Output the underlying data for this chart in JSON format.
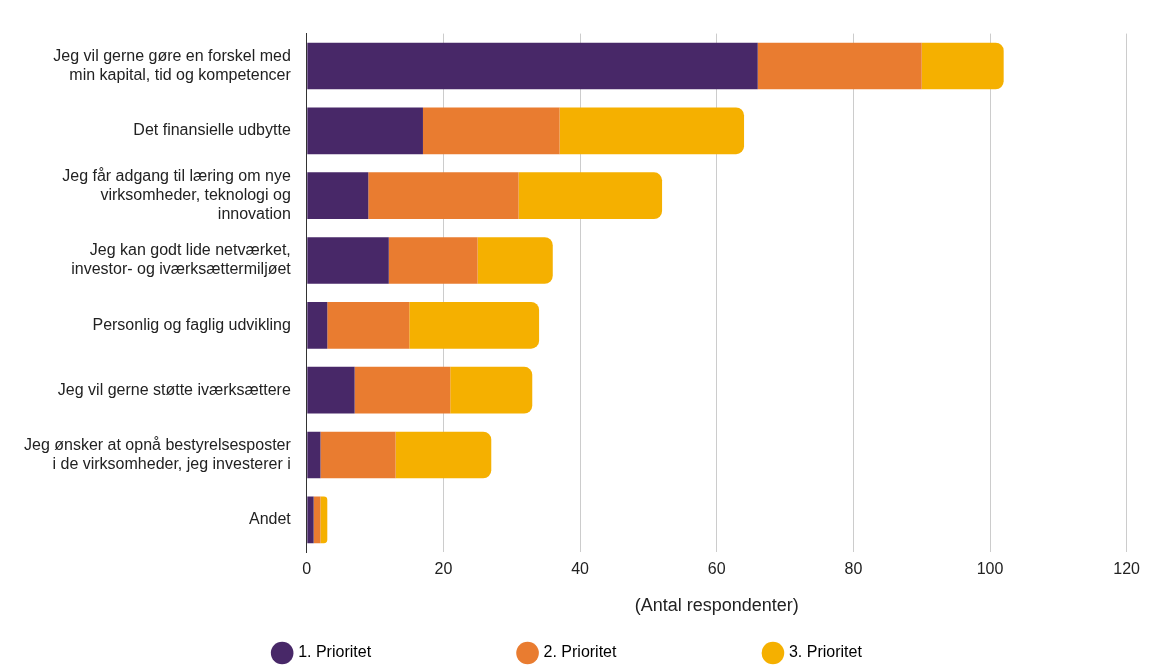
{
  "chart_data": {
    "type": "bar",
    "orientation": "horizontal",
    "stacked": true,
    "categories": [
      "Jeg vil gerne gøre en forskel med min kapital, tid og kompetencer",
      "Det finansielle udbytte",
      "Jeg får adgang til læring om nye virksomheder, teknologi og innovation",
      "Jeg kan godt lide netværket, investor- og iværksættermiljøet",
      "Personlig og faglig udvikling",
      "Jeg vil gerne støtte iværksættere",
      "Jeg ønsker at opnå bestyrelsesposter i de virksomheder, jeg investerer i",
      "Andet"
    ],
    "series": [
      {
        "name": "1. Prioritet",
        "color": "#482868",
        "values": [
          66,
          17,
          9,
          12,
          3,
          7,
          2,
          1
        ]
      },
      {
        "name": "2. Prioritet",
        "color": "#e97c30",
        "values": [
          24,
          20,
          22,
          13,
          12,
          14,
          11,
          1
        ]
      },
      {
        "name": "3. Prioritet",
        "color": "#f5b000",
        "values": [
          12,
          27,
          21,
          11,
          19,
          12,
          14,
          1
        ]
      }
    ],
    "xlabel": "(Antal respondenter)",
    "xlim": [
      0,
      120
    ],
    "xticks": [
      0,
      20,
      40,
      60,
      80,
      100,
      120
    ],
    "grid": "x",
    "legend": "bottom"
  }
}
